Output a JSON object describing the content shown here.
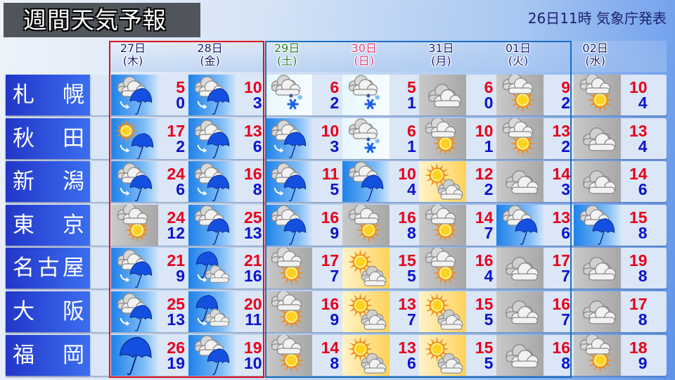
{
  "title": "週間天気予報",
  "issued": "26日11時 気象庁発表",
  "colors": {
    "high": "#e8001a",
    "low": "#0a12d0",
    "weekday": "#1b1f6e",
    "saturday": "#2e7d32",
    "sunday": "#e0407a",
    "frame_red": "#e0101a",
    "frame_blue": "#1a6fc0"
  },
  "days": [
    {
      "date": "27日",
      "dow": "(木)",
      "kind": "weekday"
    },
    {
      "date": "28日",
      "dow": "(金)",
      "kind": "weekday"
    },
    {
      "date": "29日",
      "dow": "(土)",
      "kind": "saturday"
    },
    {
      "date": "30日",
      "dow": "(日)",
      "kind": "sunday"
    },
    {
      "date": "31日",
      "dow": "(月)",
      "kind": "weekday"
    },
    {
      "date": "01日",
      "dow": "(火)",
      "kind": "weekday"
    },
    {
      "date": "02日",
      "dow": "(水)",
      "kind": "weekday"
    }
  ],
  "cities": [
    {
      "name": [
        "札",
        "幌"
      ],
      "forecast": [
        {
          "icon": "cloudy-then-rain",
          "high": "5",
          "low": "0"
        },
        {
          "icon": "cloudy-then-rain",
          "high": "10",
          "low": "3"
        },
        {
          "icon": "cloudy-snow",
          "high": "6",
          "low": "2"
        },
        {
          "icon": "cloudy-snow",
          "high": "5",
          "low": "1"
        },
        {
          "icon": "cloudy",
          "high": "6",
          "low": "0"
        },
        {
          "icon": "cloudy-sunny",
          "high": "9",
          "low": "2"
        },
        {
          "icon": "cloudy-sunny",
          "high": "10",
          "low": "4"
        }
      ]
    },
    {
      "name": [
        "秋",
        "田"
      ],
      "forecast": [
        {
          "icon": "sunny-then-rain",
          "high": "17",
          "low": "2"
        },
        {
          "icon": "cloudy-then-rain",
          "high": "13",
          "low": "6"
        },
        {
          "icon": "cloudy-then-rain",
          "high": "10",
          "low": "3"
        },
        {
          "icon": "cloudy-snow",
          "high": "6",
          "low": "1"
        },
        {
          "icon": "cloudy-sunny",
          "high": "10",
          "low": "1"
        },
        {
          "icon": "cloudy-sunny",
          "high": "13",
          "low": "2"
        },
        {
          "icon": "cloudy",
          "high": "13",
          "low": "4"
        }
      ]
    },
    {
      "name": [
        "新",
        "潟"
      ],
      "forecast": [
        {
          "icon": "cloudy-then-rain",
          "high": "24",
          "low": "6"
        },
        {
          "icon": "cloudy-then-rain",
          "high": "16",
          "low": "8"
        },
        {
          "icon": "cloudy-then-rain",
          "high": "11",
          "low": "5"
        },
        {
          "icon": "cloudy-rain",
          "high": "10",
          "low": "4"
        },
        {
          "icon": "sunny-cloudy",
          "high": "12",
          "low": "2"
        },
        {
          "icon": "cloudy",
          "high": "14",
          "low": "3"
        },
        {
          "icon": "cloudy",
          "high": "14",
          "low": "6"
        }
      ]
    },
    {
      "name": [
        "東",
        "京"
      ],
      "forecast": [
        {
          "icon": "cloudy-sunny",
          "high": "24",
          "low": "12"
        },
        {
          "icon": "cloudy-rain",
          "high": "25",
          "low": "13"
        },
        {
          "icon": "cloudy-rain",
          "high": "16",
          "low": "9"
        },
        {
          "icon": "cloudy-sunny",
          "high": "16",
          "low": "8"
        },
        {
          "icon": "cloudy-sunny",
          "high": "14",
          "low": "7"
        },
        {
          "icon": "cloudy-rain",
          "high": "13",
          "low": "6"
        },
        {
          "icon": "cloudy-rain",
          "high": "15",
          "low": "8"
        }
      ]
    },
    {
      "name": [
        "名",
        "古",
        "屋"
      ],
      "forecast": [
        {
          "icon": "cloudy-then-rain",
          "high": "21",
          "low": "9"
        },
        {
          "icon": "rain-then-cloudy",
          "high": "21",
          "low": "16"
        },
        {
          "icon": "cloudy-sunny",
          "high": "17",
          "low": "7"
        },
        {
          "icon": "sunny-cloudy",
          "high": "15",
          "low": "5"
        },
        {
          "icon": "cloudy-sunny",
          "high": "16",
          "low": "4"
        },
        {
          "icon": "cloudy",
          "high": "17",
          "low": "7"
        },
        {
          "icon": "cloudy",
          "high": "19",
          "low": "8"
        }
      ]
    },
    {
      "name": [
        "大",
        "阪"
      ],
      "forecast": [
        {
          "icon": "cloudy-then-rain",
          "high": "25",
          "low": "13"
        },
        {
          "icon": "rain-then-cloudy",
          "high": "20",
          "low": "11"
        },
        {
          "icon": "cloudy-sunny",
          "high": "16",
          "low": "9"
        },
        {
          "icon": "sunny-cloudy",
          "high": "13",
          "low": "7"
        },
        {
          "icon": "sunny-cloudy",
          "high": "15",
          "low": "5"
        },
        {
          "icon": "cloudy",
          "high": "16",
          "low": "7"
        },
        {
          "icon": "cloudy",
          "high": "17",
          "low": "8"
        }
      ]
    },
    {
      "name": [
        "福",
        "岡"
      ],
      "forecast": [
        {
          "icon": "rain",
          "high": "26",
          "low": "19"
        },
        {
          "icon": "cloudy-rain",
          "high": "19",
          "low": "10"
        },
        {
          "icon": "cloudy-sunny",
          "high": "14",
          "low": "8"
        },
        {
          "icon": "sunny-cloudy",
          "high": "13",
          "low": "6"
        },
        {
          "icon": "sunny-cloudy",
          "high": "15",
          "low": "5"
        },
        {
          "icon": "cloudy",
          "high": "16",
          "low": "8"
        },
        {
          "icon": "cloudy-sunny",
          "high": "18",
          "low": "9"
        }
      ]
    }
  ]
}
